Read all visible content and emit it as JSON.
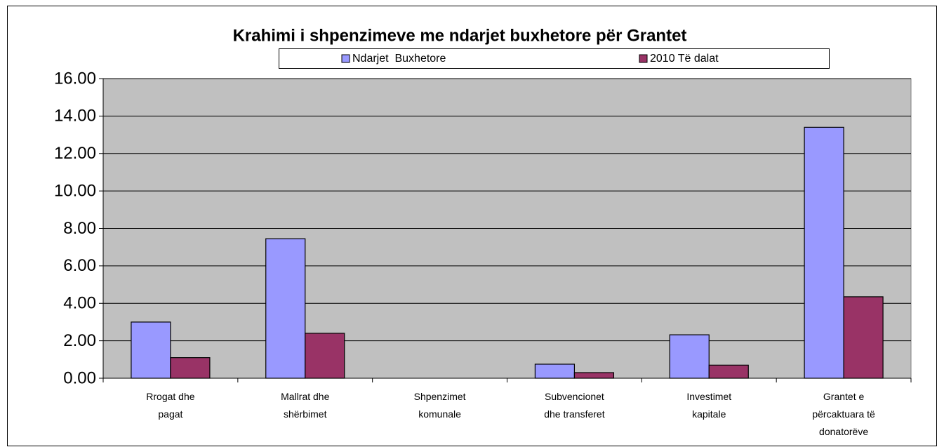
{
  "chart_data": {
    "type": "bar",
    "title": "Krahimi i shpenzimeve me ndarjet buxhetore për Grantet",
    "categories": [
      "Rrogat dhe pagat",
      "Mallrat dhe shërbimet",
      "Shpenzimet komunale",
      "Subvencionet dhe transferet",
      "Investimet kapitale",
      "Grantet e përcaktuara të donatorëve"
    ],
    "series": [
      {
        "name": "Ndarjet  Buxhetore",
        "color": "#9999ff",
        "values": [
          3.0,
          7.45,
          0,
          0.75,
          2.32,
          13.4
        ]
      },
      {
        "name": "2010 Të dalat",
        "color": "#993366",
        "values": [
          1.1,
          2.4,
          0,
          0.3,
          0.7,
          4.35
        ]
      }
    ],
    "ylim": [
      0,
      16
    ],
    "yticks": [
      {
        "value": 0,
        "label": "0.00"
      },
      {
        "value": 2,
        "label": "2.00"
      },
      {
        "value": 4,
        "label": "4.00"
      },
      {
        "value": 6,
        "label": "6.00"
      },
      {
        "value": 8,
        "label": "8.00"
      },
      {
        "value": 10,
        "label": "10.00"
      },
      {
        "value": 12,
        "label": "12.00"
      },
      {
        "value": 14,
        "label": "14.00"
      },
      {
        "value": 16,
        "label": "16.00"
      }
    ],
    "grid": true,
    "legend": "top"
  }
}
